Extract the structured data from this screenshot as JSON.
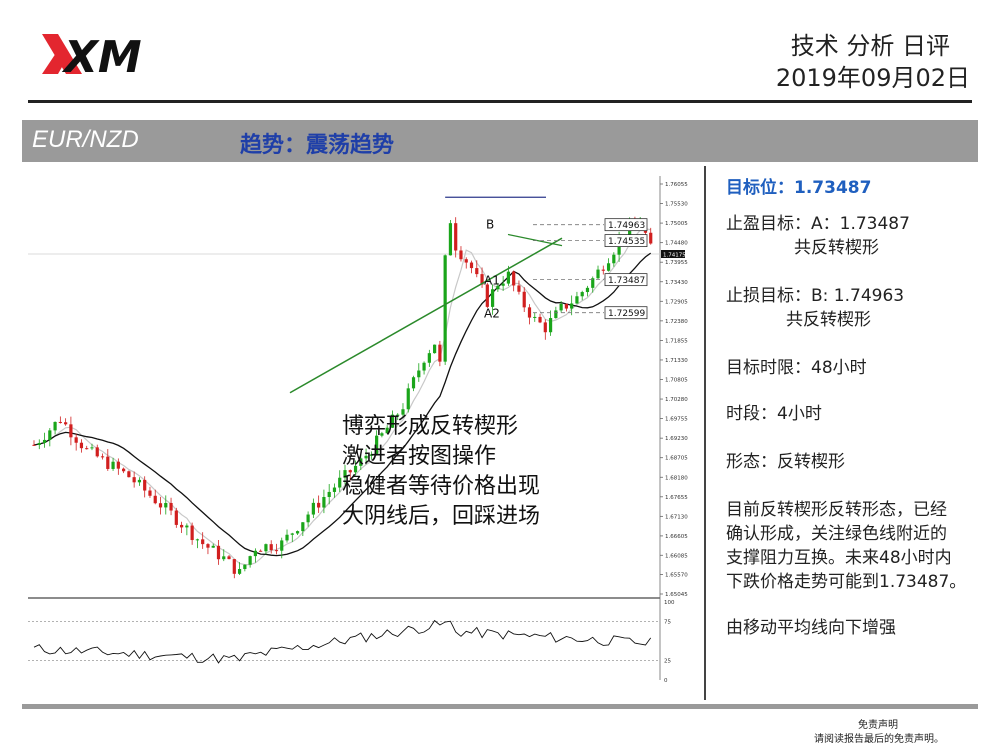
{
  "header": {
    "brand": "XM",
    "title": "技术 分析 日评",
    "date": "2019年09月02日"
  },
  "band": {
    "pair": "EUR/NZD",
    "trend": "趋势：震荡趋势"
  },
  "chart_data": {
    "type": "candlestick",
    "symbol": "EUR/NZD",
    "timeframe": "H4",
    "ylim": [
      1.65045,
      1.76055
    ],
    "y_ticks": [
      "1.76055",
      "1.75530",
      "1.75005",
      "1.74480",
      "1.73955",
      "1.73430",
      "1.72905",
      "1.72380",
      "1.71855",
      "1.71330",
      "1.70805",
      "1.70280",
      "1.69755",
      "1.69230",
      "1.68705",
      "1.68180",
      "1.67655",
      "1.67130",
      "1.66605",
      "1.66085",
      "1.65570",
      "1.65045"
    ],
    "current_price": "1.74175",
    "levels": [
      {
        "label": "",
        "value": "1.74963"
      },
      {
        "label": "",
        "value": "1.74535"
      },
      {
        "label": "A1",
        "value": "1.73487"
      },
      {
        "label": "A2",
        "value": "1.72599"
      }
    ],
    "point_label_b": "B",
    "osc_ticks": [
      "100",
      "75",
      "25",
      "0"
    ],
    "annotation": [
      "博弈形成反转楔形",
      "激进者按图操作",
      "稳健者等待价格出现",
      "大阴线后，回踩进场"
    ]
  },
  "side": {
    "target_label": "目标位：1.73487",
    "tp_line1": "止盈目标：A：1.73487",
    "tp_line2": "共反转楔形",
    "sl_line1": "止损目标：B: 1.74963",
    "sl_line2": "共反转楔形",
    "time_limit": "目标时限：48小时",
    "period": "时段：4小时",
    "pattern": "形态：反转楔形",
    "desc1": "目前反转楔形反转形态，已经",
    "desc2": "确认形成，关注绿色线附近的",
    "desc3": "支撑阻力互换。未来48小时内",
    "desc4": "下跌价格走势可能到1.73487。",
    "ma_note": "由移动平均线向下增强"
  },
  "footer": {
    "disclaimer_title": "免责声明",
    "disclaimer_text": "请阅读报告最后的免责声明。"
  }
}
